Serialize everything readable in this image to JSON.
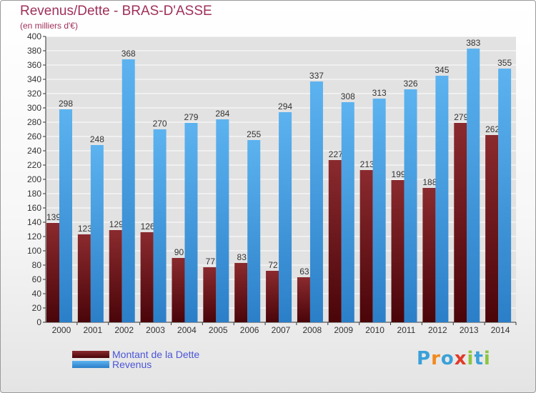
{
  "chart_data": {
    "type": "bar",
    "title": "Revenus/Dette - BRAS-D'ASSE",
    "subtitle": "(en milliers d'€)",
    "xlabel": "",
    "ylabel": "",
    "ylim": [
      0,
      400
    ],
    "ytick_step": 20,
    "grid": true,
    "categories": [
      "2000",
      "2001",
      "2002",
      "2003",
      "2004",
      "2005",
      "2006",
      "2007",
      "2008",
      "2009",
      "2010",
      "2011",
      "2012",
      "2013",
      "2014"
    ],
    "series": [
      {
        "name": "Montant de la Dette",
        "color": "#7a1e22",
        "values": [
          139,
          123,
          129,
          126,
          90,
          77,
          83,
          72,
          63,
          227,
          213,
          199,
          188,
          279,
          262
        ]
      },
      {
        "name": "Revenus",
        "color": "#4aa3e2",
        "values": [
          298,
          248,
          368,
          270,
          279,
          284,
          255,
          294,
          337,
          308,
          313,
          326,
          345,
          383,
          355
        ]
      }
    ],
    "legend_position": "bottom-left"
  },
  "brand": {
    "letters": [
      "P",
      "r",
      "o",
      "x",
      "i",
      "t",
      "i"
    ]
  },
  "colors": {
    "title": "#a0305a",
    "debt_dark": "#5a0a0e",
    "debt_light": "#8a2a2e",
    "rev_dark": "#2e86cf",
    "rev_light": "#5cb3ef",
    "grid": "#ffffff",
    "plot_bg": "#e2e2e2",
    "brand_colors": [
      "#3aa0d8",
      "#f08a1e",
      "#3aa0d8",
      "#e03a2a",
      "#8cc63f",
      "#3aa0d8",
      "#8cc63f"
    ]
  }
}
